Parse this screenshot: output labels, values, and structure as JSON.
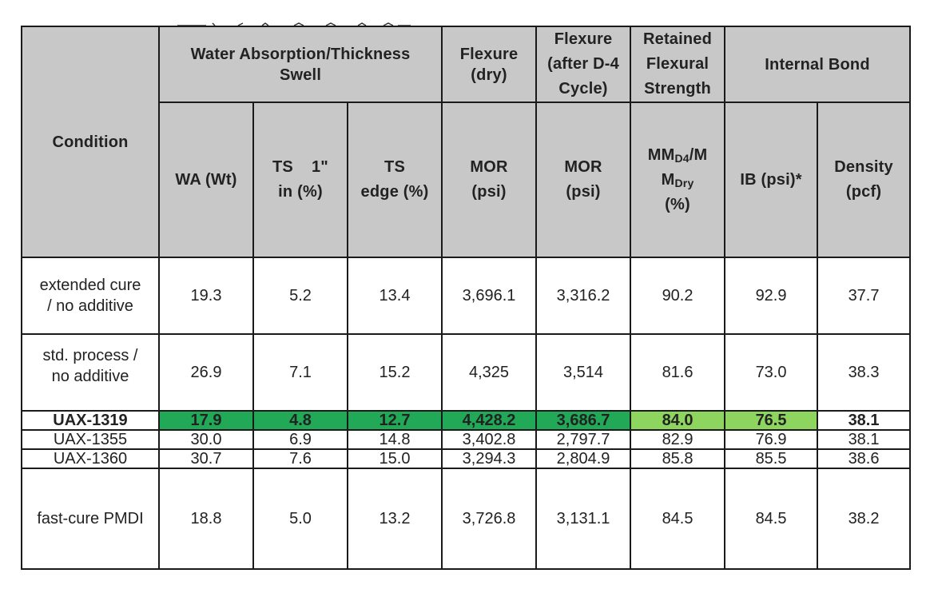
{
  "group_headers": {
    "condition": "Condition",
    "water": "Water Absorption/Thickness Swell",
    "flex_dry": "Flexure (dry)",
    "flex_d4": "Flexure (after D-4 Cycle)",
    "retained": "Retained Flexural Strength",
    "internal_bond": "Internal Bond"
  },
  "sub_headers": {
    "wa": "WA (Wt)",
    "ts1_a": "TS",
    "ts1_b": "1\"",
    "ts1_c": "in (%)",
    "tsedge_a": "TS",
    "tsedge_b": "edge (%)",
    "mor_dry_a": "MOR",
    "mor_dry_b": "(psi)",
    "mor_d4_a": "MOR",
    "mor_d4_b": "(psi)",
    "ret_a": "MM",
    "ret_a_sub": "D4",
    "ret_b": "/M",
    "ret_c": "M",
    "ret_c_sub": "Dry",
    "ret_d": "(%)",
    "ib": "IB (psi)*",
    "density_a": "Density",
    "density_b": "(pcf)"
  },
  "rows": [
    {
      "condition_a": "extended cure",
      "condition_b": "/ no additive",
      "values": [
        "19.3",
        "5.2",
        "13.4",
        "3,696.1",
        "3,316.2",
        "90.2",
        "92.9",
        "37.7"
      ]
    },
    {
      "condition_a": "std. process /",
      "condition_b": "no additive",
      "values": [
        "26.9",
        "7.1",
        "15.2",
        "4,325",
        "3,514",
        "81.6",
        "73.0",
        "38.3"
      ]
    },
    {
      "condition_a": "UAX-1319",
      "values": [
        "17.9",
        "4.8",
        "12.7",
        "4,428.2",
        "3,686.7",
        "84.0",
        "76.5",
        "38.1"
      ]
    },
    {
      "condition_a": "UAX-1355",
      "values": [
        "30.0",
        "6.9",
        "14.8",
        "3,402.8",
        "2,797.7",
        "82.9",
        "76.9",
        "38.1"
      ]
    },
    {
      "condition_a": "UAX-1360",
      "values": [
        "30.7",
        "7.6",
        "15.0",
        "3,294.3",
        "2,804.9",
        "85.8",
        "85.5",
        "38.6"
      ]
    },
    {
      "condition_a": "fast-cure PMDI",
      "values": [
        "18.8",
        "5.0",
        "13.2",
        "3,726.8",
        "3,131.1",
        "84.5",
        "84.5",
        "38.2"
      ]
    }
  ],
  "colors": {
    "header_bg": "#c8c8c8",
    "highlight_dark_green": "#21a957",
    "highlight_light_green": "#8ed560",
    "border": "#1a1a1a"
  }
}
